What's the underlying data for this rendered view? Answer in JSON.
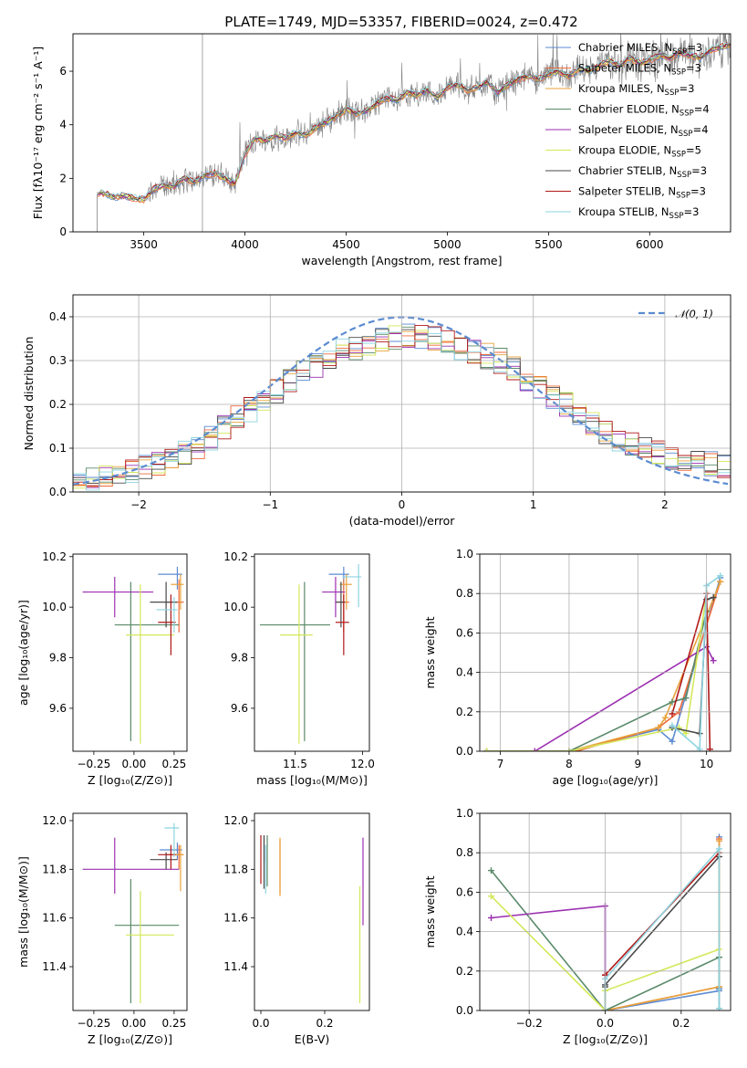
{
  "figure_title": "PLATE=1749, MJD=53357, FIBERID=0024, z=0.472",
  "series_legend": [
    {
      "name": "Chabrier MILES, N",
      "sub": "SSP",
      "tail": "=3",
      "color": "#5b8bd0"
    },
    {
      "name": "Salpeter MILES, N",
      "sub": "SSP",
      "tail": "=3",
      "color": "#ef6a3a"
    },
    {
      "name": "Kroupa MILES, N",
      "sub": "SSP",
      "tail": "=3",
      "color": "#e8a23a"
    },
    {
      "name": "Chabrier ELODIE, N",
      "sub": "SSP",
      "tail": "=4",
      "color": "#5a8a6a"
    },
    {
      "name": "Salpeter ELODIE, N",
      "sub": "SSP",
      "tail": "=4",
      "color": "#9b30b0"
    },
    {
      "name": "Kroupa ELODIE, N",
      "sub": "SSP",
      "tail": "=5",
      "color": "#d4e85a"
    },
    {
      "name": "Chabrier STELIB, N",
      "sub": "SSP",
      "tail": "=3",
      "color": "#4a4a4a"
    },
    {
      "name": "Salpeter STELIB, N",
      "sub": "SSP",
      "tail": "=3",
      "color": "#b01818"
    },
    {
      "name": "Kroupa STELIB, N",
      "sub": "SSP",
      "tail": "=3",
      "color": "#8ed4e0"
    }
  ],
  "chart_data": [
    {
      "id": "spectrum",
      "type": "line",
      "xlabel": "wavelength [Angstrom, rest frame]",
      "ylabel": "Flux [fλ10⁻¹⁷ erg cm⁻² s⁻¹ A⁻¹]",
      "xlim": [
        3150,
        6400
      ],
      "ylim": [
        0,
        7.4
      ],
      "xticks": [
        3500,
        4000,
        4500,
        5000,
        5500,
        6000
      ],
      "yticks": [
        0,
        2,
        4,
        6
      ],
      "grid": false,
      "legend_position": "top-right",
      "observed_color": "#808080",
      "observed_range": [
        3520,
        6400
      ],
      "continuum": {
        "x": [
          3270,
          3290,
          3330,
          3350,
          3400,
          3450,
          3500,
          3550,
          3600,
          3650,
          3700,
          3750,
          3800,
          3850,
          3900,
          3950,
          4000,
          4050,
          4100,
          4150,
          4200,
          4250,
          4300,
          4350,
          4400,
          4450,
          4500,
          4550,
          4600,
          4650,
          4700,
          4750,
          4800,
          4850,
          4900,
          4950,
          5000,
          5050,
          5100,
          5150,
          5200,
          5250,
          5300,
          5350,
          5400,
          5450,
          5500,
          5550,
          5600,
          5650,
          5700,
          5750,
          5800,
          5850,
          5900,
          5950,
          6000,
          6050,
          6100,
          6150,
          6200,
          6250,
          6300,
          6350,
          6400
        ],
        "y": [
          1.4,
          1.45,
          1.4,
          1.3,
          1.35,
          1.25,
          1.2,
          1.6,
          1.75,
          1.7,
          2.0,
          1.85,
          2.1,
          2.2,
          2.0,
          1.8,
          2.9,
          3.5,
          3.4,
          3.6,
          3.5,
          3.7,
          3.6,
          3.9,
          4.1,
          4.3,
          4.6,
          4.4,
          4.5,
          4.8,
          5.0,
          4.9,
          5.2,
          5.1,
          5.3,
          5.0,
          5.4,
          5.5,
          5.3,
          5.4,
          5.6,
          5.2,
          5.5,
          5.7,
          5.8,
          5.7,
          5.9,
          6.0,
          5.8,
          6.1,
          6.0,
          6.2,
          6.4,
          6.2,
          6.5,
          6.3,
          6.4,
          6.6,
          6.5,
          6.7,
          6.6,
          6.5,
          6.8,
          6.9,
          7.0
        ]
      }
    },
    {
      "id": "residuals",
      "type": "line",
      "xlabel": "(data-model)/error",
      "ylabel": "Normed distribution",
      "xlim": [
        -2.5,
        2.5
      ],
      "ylim": [
        0,
        0.45
      ],
      "xticks": [
        -2,
        -1,
        0,
        1,
        2
      ],
      "yticks": [
        0.0,
        0.1,
        0.2,
        0.3,
        0.4
      ],
      "grid": true,
      "gaussian_label": "𝒩(0, 1)",
      "gaussian_color": "#5b8bd0",
      "hist_bins": [
        -2.5,
        2.5,
        50
      ],
      "hist_base": [
        0.03,
        0.03,
        0.035,
        0.04,
        0.05,
        0.06,
        0.065,
        0.08,
        0.09,
        0.1,
        0.12,
        0.15,
        0.17,
        0.19,
        0.21,
        0.23,
        0.25,
        0.27,
        0.29,
        0.31,
        0.32,
        0.33,
        0.34,
        0.345,
        0.35,
        0.36,
        0.355,
        0.35,
        0.34,
        0.33,
        0.32,
        0.31,
        0.3,
        0.28,
        0.26,
        0.24,
        0.22,
        0.2,
        0.18,
        0.16,
        0.14,
        0.12,
        0.11,
        0.1,
        0.09,
        0.08,
        0.075,
        0.07,
        0.065,
        0.06
      ]
    },
    {
      "id": "age-vs-Z",
      "type": "errorbar",
      "xlabel": "Z [log₁₀(Z/Z⊙)]",
      "ylabel": "age  [log₁₀(age/yr)]",
      "xlim": [
        -0.38,
        0.33
      ],
      "ylim": [
        9.43,
        10.21
      ],
      "xticks": [
        -0.25,
        0.0,
        0.25
      ],
      "xticklabels": [
        "−0.25",
        "0.00",
        "0.25"
      ],
      "yticks": [
        9.6,
        9.8,
        10.0,
        10.2
      ],
      "points": [
        {
          "s": 0,
          "x": 0.27,
          "y": 10.13,
          "xe": [
            0.12,
            0.03
          ],
          "ye": [
            0.06,
            0.03
          ]
        },
        {
          "s": 1,
          "x": 0.28,
          "y": 10.02,
          "xe": [
            0.08,
            0.03
          ],
          "ye": [
            0.12,
            0.09
          ]
        },
        {
          "s": 2,
          "x": 0.29,
          "y": 10.09,
          "xe": [
            0.06,
            0.02
          ],
          "ye": [
            0.1,
            0.04
          ]
        },
        {
          "s": 3,
          "x": -0.02,
          "y": 9.93,
          "xe": [
            0.1,
            0.3
          ],
          "ye": [
            0.46,
            0.17
          ]
        },
        {
          "s": 4,
          "x": -0.12,
          "y": 10.06,
          "xe": [
            0.2,
            0.24
          ],
          "ye": [
            0.1,
            0.06
          ]
        },
        {
          "s": 5,
          "x": 0.04,
          "y": 9.89,
          "xe": [
            0.09,
            0.21
          ],
          "ye": [
            0.43,
            0.2
          ]
        },
        {
          "s": 6,
          "x": 0.2,
          "y": 10.02,
          "xe": [
            0.1,
            0.07
          ],
          "ye": [
            0.1,
            0.08
          ]
        },
        {
          "s": 7,
          "x": 0.23,
          "y": 9.94,
          "xe": [
            0.08,
            0.03
          ],
          "ye": [
            0.13,
            0.11
          ]
        },
        {
          "s": 8,
          "x": 0.25,
          "y": 9.99,
          "xe": [
            0.11,
            0.02
          ],
          "ye": [
            0.09,
            0.05
          ]
        }
      ]
    },
    {
      "id": "age-vs-mass",
      "type": "errorbar",
      "xlabel": "mass [log₁₀(M/M⊙)]",
      "ylabel": "",
      "xlim": [
        11.2,
        12.05
      ],
      "ylim": [
        9.43,
        10.21
      ],
      "xticks": [
        11.5,
        12.0
      ],
      "xticklabels": [
        "11.5",
        "12.0"
      ],
      "yticks": [
        9.6,
        9.8,
        10.0,
        10.2
      ],
      "points": [
        {
          "s": 0,
          "x": 11.86,
          "y": 10.13,
          "xe": [
            0.11,
            0.04
          ],
          "ye": [
            0.06,
            0.03
          ]
        },
        {
          "s": 1,
          "x": 11.86,
          "y": 10.02,
          "xe": [
            0.05,
            0.04
          ],
          "ye": [
            0.12,
            0.09
          ]
        },
        {
          "s": 2,
          "x": 11.88,
          "y": 10.09,
          "xe": [
            0.05,
            0.04
          ],
          "ye": [
            0.1,
            0.04
          ]
        },
        {
          "s": 3,
          "x": 11.57,
          "y": 9.93,
          "xe": [
            0.33,
            0.19
          ],
          "ye": [
            0.46,
            0.17
          ]
        },
        {
          "s": 4,
          "x": 11.8,
          "y": 10.06,
          "xe": [
            0.1,
            0.07
          ],
          "ye": [
            0.1,
            0.06
          ]
        },
        {
          "s": 5,
          "x": 11.53,
          "y": 9.89,
          "xe": [
            0.14,
            0.1
          ],
          "ye": [
            0.43,
            0.2
          ]
        },
        {
          "s": 6,
          "x": 11.84,
          "y": 10.02,
          "xe": [
            0.04,
            0.03
          ],
          "ye": [
            0.1,
            0.08
          ]
        },
        {
          "s": 7,
          "x": 11.86,
          "y": 9.94,
          "xe": [
            0.06,
            0.04
          ],
          "ye": [
            0.13,
            0.11
          ]
        },
        {
          "s": 8,
          "x": 11.97,
          "y": 10.12,
          "xe": [
            0.12,
            0.02
          ],
          "ye": [
            0.12,
            0.05
          ]
        }
      ]
    },
    {
      "id": "weight-vs-age",
      "type": "line",
      "xlabel": "age  [log₁₀(age/yr)]",
      "ylabel": "mass weight",
      "xlim": [
        6.7,
        10.35
      ],
      "ylim": [
        0,
        1.0
      ],
      "xticks": [
        7,
        8,
        9,
        10
      ],
      "yticks": [
        0.0,
        0.2,
        0.4,
        0.6,
        0.8,
        1.0
      ],
      "grid": true,
      "series": [
        {
          "s": 0,
          "x": [
            6.8,
            8.0,
            9.3,
            9.5,
            10.2
          ],
          "y": [
            0.0,
            0.0,
            0.11,
            0.05,
            0.88
          ]
        },
        {
          "s": 1,
          "x": [
            6.8,
            8.1,
            9.3,
            9.6,
            10.2
          ],
          "y": [
            0.0,
            0.0,
            0.12,
            0.2,
            0.86
          ]
        },
        {
          "s": 2,
          "x": [
            6.8,
            8.0,
            9.3,
            9.4,
            10.2
          ],
          "y": [
            0.0,
            0.0,
            0.12,
            0.17,
            0.86
          ]
        },
        {
          "s": 3,
          "x": [
            6.8,
            8.0,
            9.5,
            9.7,
            10.0
          ],
          "y": [
            0.0,
            0.0,
            0.25,
            0.27,
            0.71
          ]
        },
        {
          "s": 4,
          "x": [
            7.5,
            10.0,
            10.1
          ],
          "y": [
            0.0,
            0.53,
            0.46
          ]
        },
        {
          "s": 5,
          "x": [
            6.8,
            8.0,
            9.6,
            9.7,
            10.0
          ],
          "y": [
            0.0,
            0.0,
            0.12,
            0.09,
            0.8
          ]
        },
        {
          "s": 6,
          "x": [
            9.5,
            9.9,
            10.0,
            10.1
          ],
          "y": [
            0.12,
            0.09,
            0.77,
            0.78
          ]
        },
        {
          "s": 7,
          "x": [
            9.5,
            10.0,
            10.05
          ],
          "y": [
            0.19,
            0.8,
            0.01
          ]
        },
        {
          "s": 8,
          "x": [
            9.5,
            9.9,
            10.0,
            10.2
          ],
          "y": [
            0.13,
            0.01,
            0.84,
            0.89
          ]
        }
      ]
    },
    {
      "id": "mass-vs-Z",
      "type": "errorbar",
      "xlabel": "Z [log₁₀(Z/Z⊙)]",
      "ylabel": "mass [log₁₀(M/M⊙)]",
      "xlim": [
        -0.38,
        0.33
      ],
      "ylim": [
        11.22,
        12.03
      ],
      "xticks": [
        -0.25,
        0.0,
        0.25
      ],
      "xticklabels": [
        "−0.25",
        "0.00",
        "0.25"
      ],
      "yticks": [
        11.4,
        11.6,
        11.8,
        12.0
      ],
      "points": [
        {
          "s": 0,
          "x": 0.27,
          "y": 11.88,
          "xe": [
            0.11,
            0.03
          ],
          "ye": [
            0.04,
            0.03
          ]
        },
        {
          "s": 1,
          "x": 0.28,
          "y": 11.86,
          "xe": [
            0.08,
            0.03
          ],
          "ye": [
            0.06,
            0.04
          ]
        },
        {
          "s": 2,
          "x": 0.29,
          "y": 11.86,
          "xe": [
            0.06,
            0.02
          ],
          "ye": [
            0.15,
            0.04
          ]
        },
        {
          "s": 3,
          "x": -0.02,
          "y": 11.57,
          "xe": [
            0.1,
            0.3
          ],
          "ye": [
            0.32,
            0.19
          ]
        },
        {
          "s": 4,
          "x": -0.12,
          "y": 11.8,
          "xe": [
            0.2,
            0.4
          ],
          "ye": [
            0.1,
            0.13
          ]
        },
        {
          "s": 5,
          "x": 0.04,
          "y": 11.53,
          "xe": [
            0.09,
            0.21
          ],
          "ye": [
            0.28,
            0.18
          ]
        },
        {
          "s": 6,
          "x": 0.2,
          "y": 11.84,
          "xe": [
            0.1,
            0.07
          ],
          "ye": [
            0.04,
            0.03
          ]
        },
        {
          "s": 7,
          "x": 0.23,
          "y": 11.86,
          "xe": [
            0.08,
            0.03
          ],
          "ye": [
            0.06,
            0.04
          ]
        },
        {
          "s": 8,
          "x": 0.25,
          "y": 11.97,
          "xe": [
            0.06,
            0.03
          ],
          "ye": [
            0.12,
            0.02
          ]
        }
      ]
    },
    {
      "id": "mass-vs-ebv",
      "type": "errorbar",
      "xlabel": "E(B-V)",
      "ylabel": "",
      "xlim": [
        -0.02,
        0.34
      ],
      "ylim": [
        11.22,
        12.03
      ],
      "xticks": [
        0.0,
        0.2
      ],
      "xticklabels": [
        "0.0",
        "0.2"
      ],
      "yticks": [
        11.4,
        11.6,
        11.8,
        12.0
      ],
      "points": [
        {
          "s": 0,
          "x": 0.01,
          "y": 11.88,
          "xe": [
            0.0,
            0.0
          ],
          "ye": [
            0.05,
            0.05
          ]
        },
        {
          "s": 1,
          "x": 0.06,
          "y": 11.86,
          "xe": [
            0.0,
            0.0
          ],
          "ye": [
            0.16,
            0.06
          ]
        },
        {
          "s": 2,
          "x": 0.06,
          "y": 11.86,
          "xe": [
            0.0,
            0.0
          ],
          "ye": [
            0.17,
            0.07
          ]
        },
        {
          "s": 3,
          "x": 0.02,
          "y": 11.86,
          "xe": [
            0.0,
            0.0
          ],
          "ye": [
            0.13,
            0.08
          ]
        },
        {
          "s": 4,
          "x": 0.32,
          "y": 11.8,
          "xe": [
            0.0,
            0.0
          ],
          "ye": [
            0.23,
            0.13
          ]
        },
        {
          "s": 5,
          "x": 0.31,
          "y": 11.53,
          "xe": [
            0.0,
            0.0
          ],
          "ye": [
            0.28,
            0.2
          ]
        },
        {
          "s": 6,
          "x": 0.01,
          "y": 11.84,
          "xe": [
            0.0,
            0.0
          ],
          "ye": [
            0.12,
            0.1
          ]
        },
        {
          "s": 7,
          "x": 0.0,
          "y": 11.84,
          "xe": [
            0.0,
            0.0
          ],
          "ye": [
            0.1,
            0.1
          ]
        },
        {
          "s": 8,
          "x": 0.015,
          "y": 11.8,
          "xe": [
            0.0,
            0.0
          ],
          "ye": [
            0.1,
            0.1
          ]
        }
      ]
    },
    {
      "id": "weight-vs-Z",
      "type": "line",
      "xlabel": "Z [log₁₀(Z/Z⊙)]",
      "ylabel": "mass weight",
      "xlim": [
        -0.33,
        0.33
      ],
      "ylim": [
        0,
        1.0
      ],
      "xticks": [
        -0.2,
        0.0,
        0.2
      ],
      "xticklabels": [
        "−0.2",
        "0.0",
        "0.2"
      ],
      "yticks": [
        0.0,
        0.2,
        0.4,
        0.6,
        0.8,
        1.0
      ],
      "grid": true,
      "series": [
        {
          "s": 0,
          "x": [
            0.0,
            0.3,
            0.3,
            0.3
          ],
          "y": [
            0.0,
            0.1,
            0.11,
            0.88
          ]
        },
        {
          "s": 1,
          "x": [
            0.0,
            0.3,
            0.3
          ],
          "y": [
            0.0,
            0.12,
            0.87
          ]
        },
        {
          "s": 2,
          "x": [
            0.0,
            0.3,
            0.3
          ],
          "y": [
            0.0,
            0.12,
            0.86
          ]
        },
        {
          "s": 3,
          "x": [
            -0.3,
            0.0,
            0.3,
            0.3
          ],
          "y": [
            0.71,
            0.0,
            0.27,
            0.01
          ]
        },
        {
          "s": 4,
          "x": [
            -0.3,
            0.0,
            0.0
          ],
          "y": [
            0.47,
            0.53,
            0.0
          ]
        },
        {
          "s": 5,
          "x": [
            -0.3,
            0.0,
            0.0,
            0.3
          ],
          "y": [
            0.58,
            0.0,
            0.1,
            0.31
          ]
        },
        {
          "s": 6,
          "x": [
            0.0,
            0.0,
            0.3
          ],
          "y": [
            0.12,
            0.13,
            0.78
          ]
        },
        {
          "s": 7,
          "x": [
            0.0,
            0.0,
            0.3
          ],
          "y": [
            0.18,
            0.18,
            0.8
          ]
        },
        {
          "s": 8,
          "x": [
            0.0,
            0.0,
            0.3,
            0.3
          ],
          "y": [
            0.0,
            0.16,
            0.82,
            0.01
          ]
        }
      ]
    }
  ]
}
